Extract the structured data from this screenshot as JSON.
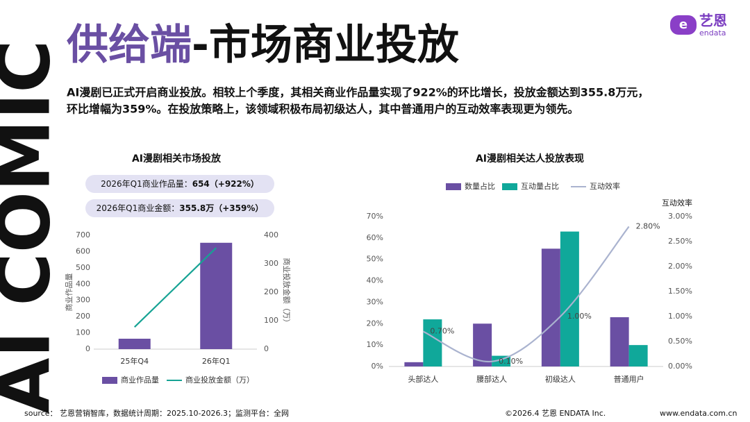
{
  "header": {
    "title_accent": "供给端",
    "title_rest": "-市场商业投放",
    "side_text": "AI COMIC",
    "logo": "艺恩",
    "logo_sub": "endata"
  },
  "intro": [
    "AI漫剧已正式开启商业投放。相较上个季度，其相关商业作品量实现了922%的环比增长，投放金额达到355.8万元，",
    "环比增幅为359%。在投放策略上，该领域积极布局初级达人，其中普通用户的互动效率表现更为领先。"
  ],
  "chart_data": [
    {
      "type": "bar",
      "title": "AI漫剧相关市场投放",
      "annotations": [
        {
          "label": "2026年Q1商业作品量：",
          "value": "654（+922%）"
        },
        {
          "label": "2026年Q1商业金额：",
          "value": "355.8万（+359%）"
        }
      ],
      "categories": [
        "25年Q4",
        "26年Q1"
      ],
      "series": [
        {
          "name": "商业作品量",
          "color": "#6a4fa3",
          "values": [
            64,
            654
          ]
        },
        {
          "name": "商业投放金额（万）",
          "type": "line",
          "axis": "y2",
          "color": "#16a394",
          "values": [
            77.5,
            355.8
          ]
        }
      ],
      "ylabel": "商业作品量",
      "y2label": "商业投放金额（万）",
      "ylim": [
        0,
        700
      ],
      "yticks": [
        0,
        100,
        200,
        300,
        400,
        500,
        600,
        700
      ],
      "y2lim": [
        0,
        400
      ],
      "y2ticks": [
        0,
        100,
        200,
        300,
        400
      ],
      "legend": "bottom"
    },
    {
      "type": "bar",
      "title": "AI漫剧相关达人投放表现",
      "categories": [
        "头部达人",
        "腰部达人",
        "初级达人",
        "普通用户"
      ],
      "series": [
        {
          "name": "数量占比",
          "color": "#6a4fa3",
          "values": [
            2,
            20,
            55,
            23
          ]
        },
        {
          "name": "互动量占比",
          "color": "#10a89a",
          "values": [
            22,
            5,
            63,
            10
          ]
        },
        {
          "name": "互动效率",
          "type": "line",
          "axis": "y2",
          "smooth": true,
          "color": "#aab3cf",
          "values": [
            0.7,
            0.1,
            1.0,
            2.8
          ],
          "value_labels": [
            "0.70%",
            "0.10%",
            "1.00%",
            "2.80%"
          ]
        }
      ],
      "y2label": "互动效率",
      "ylim": [
        0,
        70
      ],
      "yticks": [
        {
          "value": 0,
          "label": "0%"
        },
        {
          "value": 10,
          "label": "10%"
        },
        {
          "value": 20,
          "label": "20%"
        },
        {
          "value": 30,
          "label": "30%"
        },
        {
          "value": 40,
          "label": "40%"
        },
        {
          "value": 50,
          "label": "50%"
        },
        {
          "value": 60,
          "label": "60%"
        },
        {
          "value": 70,
          "label": "70%"
        }
      ],
      "y2lim": [
        0,
        3
      ],
      "y2ticks": [
        {
          "value": 0,
          "label": "0.00%"
        },
        {
          "value": 0.5,
          "label": "0.50%"
        },
        {
          "value": 1,
          "label": "1.00%"
        },
        {
          "value": 1.5,
          "label": "1.50%"
        },
        {
          "value": 2,
          "label": "2.00%"
        },
        {
          "value": 2.5,
          "label": "2.50%"
        },
        {
          "value": 3,
          "label": "3.00%"
        }
      ],
      "legend": "top"
    }
  ],
  "footer": {
    "source": "source： 艺恩营销智库，数据统计周期：2025.10-2026.3；监测平台：全网",
    "copyright": "©2026.4 艺恩 ENDATA Inc.",
    "url": "www.endata.com.cn"
  }
}
